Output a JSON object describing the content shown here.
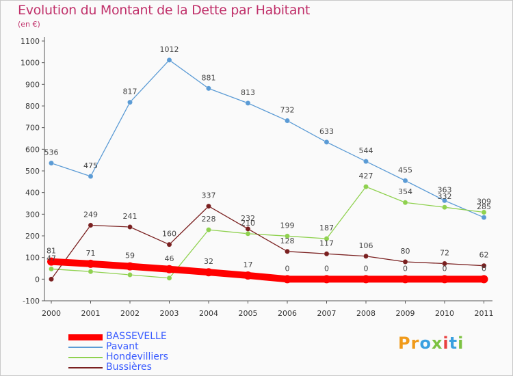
{
  "title": "Evolution du Montant de la Dette par Habitant",
  "subtitle": "(en €)",
  "logo": {
    "text": "Proxiti",
    "letters": [
      "P",
      "r",
      "o",
      "x",
      "i",
      "t",
      "i"
    ],
    "colors": [
      "#f09a1a",
      "#f09a1a",
      "#3aa0e0",
      "#7cc242",
      "#e84040",
      "#3aa0e0",
      "#7cc242"
    ]
  },
  "chart_data": {
    "type": "line",
    "x": [
      "2000",
      "2001",
      "2002",
      "2003",
      "2004",
      "2005",
      "2006",
      "2007",
      "2008",
      "2009",
      "2010",
      "2011"
    ],
    "ylim": [
      -100,
      1100
    ],
    "yticks": [
      "-100",
      "0",
      "100",
      "200",
      "300",
      "400",
      "500",
      "600",
      "700",
      "800",
      "900",
      "1000",
      "1100"
    ],
    "grid": false,
    "legend_position": "bottom-left",
    "series": [
      {
        "name": "Pavant",
        "color": "#5b9bd5",
        "values": [
          536,
          475,
          817,
          1012,
          881,
          813,
          732,
          633,
          544,
          455,
          363,
          285
        ],
        "labels": [
          "536",
          "475",
          "817",
          "1012",
          "881",
          "813",
          "732",
          "633",
          "544",
          "455",
          "363",
          "285"
        ]
      },
      {
        "name": "Hondevilliers",
        "color": "#8fd14f",
        "values": [
          47,
          35,
          20,
          5,
          228,
          210,
          199,
          187,
          427,
          354,
          332,
          309
        ],
        "labels": [
          "47",
          "",
          "",
          "",
          "228",
          "210",
          "199",
          "187",
          "427",
          "354",
          "332",
          "309"
        ]
      },
      {
        "name": "Bussières",
        "color": "#7a2020",
        "values": [
          0,
          249,
          241,
          160,
          337,
          232,
          128,
          117,
          106,
          80,
          72,
          62
        ],
        "labels": [
          "",
          "249",
          "241",
          "160",
          "337",
          "232",
          "128",
          "117",
          "106",
          "80",
          "72",
          "62"
        ]
      },
      {
        "name": "BASSEVELLE",
        "color": "#ff0000",
        "values": [
          81,
          71,
          59,
          46,
          32,
          17,
          0,
          0,
          0,
          0,
          0,
          0
        ],
        "labels": [
          "81",
          "71",
          "59",
          "46",
          "32",
          "17",
          "0",
          "0",
          "0",
          "0",
          "0",
          "0"
        ]
      }
    ]
  }
}
